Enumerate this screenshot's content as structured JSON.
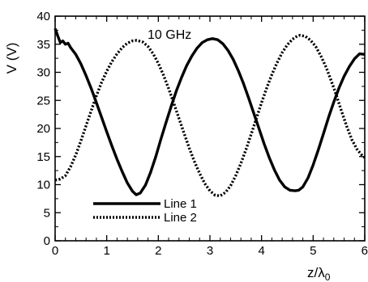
{
  "chart_data": {
    "type": "line",
    "xlabel": "z/λ",
    "xlabel_sub": "0",
    "ylabel": "V (V)",
    "annotation": "10 GHz",
    "xlim": [
      0,
      6
    ],
    "ylim": [
      0,
      40
    ],
    "xticks": [
      "0",
      "1",
      "2",
      "3",
      "4",
      "5",
      "6"
    ],
    "yticks": [
      "0",
      "5",
      "10",
      "15",
      "20",
      "25",
      "30",
      "35",
      "40"
    ],
    "grid": false,
    "legend_position": "bottom-left",
    "series": [
      {
        "name": "Line 1",
        "style": "solid",
        "color": "#000000",
        "x": [
          0,
          0.05,
          0.1,
          0.15,
          0.2,
          0.25,
          0.3,
          0.4,
          0.5,
          0.6,
          0.7,
          0.8,
          0.9,
          1.0,
          1.1,
          1.2,
          1.3,
          1.4,
          1.5,
          1.57,
          1.65,
          1.75,
          1.85,
          1.95,
          2.05,
          2.15,
          2.25,
          2.35,
          2.45,
          2.55,
          2.65,
          2.75,
          2.85,
          2.95,
          3.05,
          3.15,
          3.25,
          3.35,
          3.45,
          3.55,
          3.65,
          3.75,
          3.85,
          3.95,
          4.05,
          4.15,
          4.25,
          4.35,
          4.45,
          4.55,
          4.65,
          4.72,
          4.8,
          4.9,
          5.0,
          5.1,
          5.2,
          5.3,
          5.4,
          5.5,
          5.6,
          5.7,
          5.8,
          5.9,
          6.0
        ],
        "y": [
          37.8,
          36.5,
          35.3,
          35.6,
          35.0,
          35.2,
          34.4,
          33.2,
          31.5,
          29.4,
          27.1,
          24.6,
          22.0,
          19.4,
          16.9,
          14.5,
          12.3,
          10.3,
          8.8,
          8.2,
          8.5,
          9.9,
          12.2,
          15.0,
          18.1,
          21.1,
          24.0,
          26.7,
          29.1,
          31.2,
          32.9,
          34.3,
          35.3,
          35.8,
          36.0,
          35.8,
          35.1,
          33.9,
          32.3,
          30.3,
          28.0,
          25.4,
          22.7,
          20.0,
          17.3,
          14.8,
          12.6,
          10.8,
          9.6,
          9.0,
          8.9,
          9.0,
          9.6,
          11.2,
          13.5,
          16.2,
          19.1,
          22.0,
          24.7,
          27.2,
          29.3,
          31.0,
          32.4,
          33.3,
          33.2
        ]
      },
      {
        "name": "Line 2",
        "style": "dotted",
        "color": "#000000",
        "x": [
          0,
          0.1,
          0.2,
          0.3,
          0.4,
          0.5,
          0.6,
          0.7,
          0.8,
          0.9,
          1.0,
          1.1,
          1.2,
          1.3,
          1.4,
          1.5,
          1.58,
          1.7,
          1.8,
          1.9,
          2.0,
          2.1,
          2.2,
          2.3,
          2.4,
          2.5,
          2.6,
          2.7,
          2.8,
          2.9,
          3.0,
          3.1,
          3.2,
          3.3,
          3.4,
          3.5,
          3.6,
          3.7,
          3.8,
          3.9,
          4.0,
          4.1,
          4.2,
          4.3,
          4.4,
          4.5,
          4.6,
          4.7,
          4.75,
          4.85,
          4.95,
          5.05,
          5.15,
          5.25,
          5.35,
          5.45,
          5.55,
          5.65,
          5.75,
          5.85,
          5.95,
          6.0
        ],
        "y": [
          10.8,
          11.0,
          11.6,
          13.2,
          15.3,
          17.8,
          20.5,
          23.2,
          25.8,
          28.2,
          30.2,
          31.9,
          33.3,
          34.4,
          35.2,
          35.6,
          35.7,
          35.4,
          34.6,
          33.3,
          31.6,
          29.5,
          27.1,
          24.5,
          21.8,
          19.1,
          16.5,
          14.1,
          12.0,
          10.2,
          8.9,
          8.1,
          8.0,
          8.6,
          9.8,
          11.6,
          13.8,
          16.3,
          19.0,
          21.8,
          24.6,
          27.2,
          29.6,
          31.7,
          33.5,
          34.9,
          35.9,
          36.5,
          36.6,
          36.4,
          35.7,
          34.6,
          32.9,
          30.9,
          28.5,
          25.9,
          23.1,
          20.4,
          18.0,
          16.3,
          15.2,
          14.8
        ]
      }
    ]
  }
}
